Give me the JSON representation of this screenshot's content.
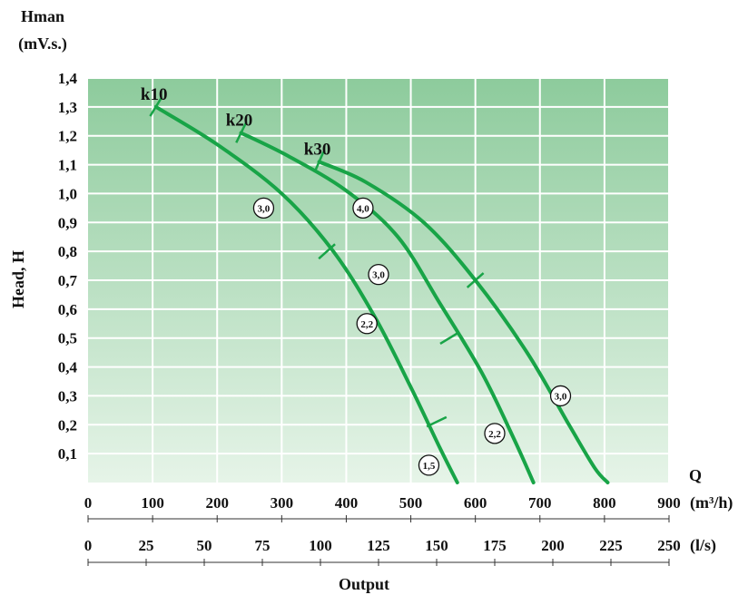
{
  "chart_data": {
    "type": "line",
    "y_axis": {
      "title_top": "Hman",
      "title_unit": "(mV.s.)",
      "title_side": "Head, H",
      "range": [
        0,
        1.4
      ],
      "ticks": [
        "0,1",
        "0,2",
        "0,3",
        "0,4",
        "0,5",
        "0,6",
        "0,7",
        "0,8",
        "0,9",
        "1,0",
        "1,1",
        "1,2",
        "1,3",
        "1,4"
      ]
    },
    "x_axis": {
      "q_label": "Q",
      "range": [
        0,
        900
      ],
      "ticks": [
        "0",
        "100",
        "200",
        "300",
        "400",
        "500",
        "600",
        "700",
        "800",
        "900"
      ],
      "unit": "(m³/h)"
    },
    "x_axis_secondary": {
      "range": [
        0,
        250
      ],
      "ticks": [
        "0",
        "25",
        "50",
        "75",
        "100",
        "125",
        "150",
        "175",
        "200",
        "225",
        "250"
      ],
      "unit": "(l/s)"
    },
    "x_title": "Output",
    "grid": true,
    "colors": {
      "curve": "#18a447",
      "bg_top": "#8dcb9c",
      "bg_bottom": "#e6f4e8",
      "grid": "#ffffff"
    },
    "series": [
      {
        "name": "k10",
        "points": [
          [
            105,
            1.3
          ],
          [
            200,
            1.17
          ],
          [
            300,
            1.0
          ],
          [
            380,
            0.8
          ],
          [
            445,
            0.57
          ],
          [
            500,
            0.33
          ],
          [
            545,
            0.12
          ],
          [
            572,
            0.0
          ]
        ],
        "ticks_at": [
          [
            105,
            1.3
          ],
          [
            370,
            0.8
          ],
          [
            540,
            0.21
          ]
        ],
        "power_labels": [
          {
            "label": "3,0",
            "x": 272,
            "y": 0.95
          },
          {
            "label": "2,2",
            "x": 432,
            "y": 0.55
          },
          {
            "label": "1,5",
            "x": 528,
            "y": 0.06
          }
        ]
      },
      {
        "name": "k20",
        "points": [
          [
            237,
            1.21
          ],
          [
            310,
            1.13
          ],
          [
            400,
            1.01
          ],
          [
            480,
            0.85
          ],
          [
            545,
            0.62
          ],
          [
            610,
            0.38
          ],
          [
            660,
            0.15
          ],
          [
            690,
            0.0
          ]
        ],
        "ticks_at": [
          [
            237,
            1.21
          ],
          [
            560,
            0.5
          ]
        ],
        "power_labels": [
          {
            "label": "3,0",
            "x": 450,
            "y": 0.72
          },
          {
            "label": "2,2",
            "x": 630,
            "y": 0.17
          }
        ]
      },
      {
        "name": "k30",
        "points": [
          [
            358,
            1.11
          ],
          [
            430,
            1.04
          ],
          [
            520,
            0.9
          ],
          [
            600,
            0.7
          ],
          [
            680,
            0.45
          ],
          [
            745,
            0.2
          ],
          [
            785,
            0.05
          ],
          [
            805,
            0.0
          ]
        ],
        "ticks_at": [
          [
            358,
            1.11
          ],
          [
            600,
            0.7
          ]
        ],
        "power_labels": [
          {
            "label": "4,0",
            "x": 426,
            "y": 0.95
          },
          {
            "label": "3,0",
            "x": 732,
            "y": 0.3
          }
        ]
      }
    ]
  }
}
